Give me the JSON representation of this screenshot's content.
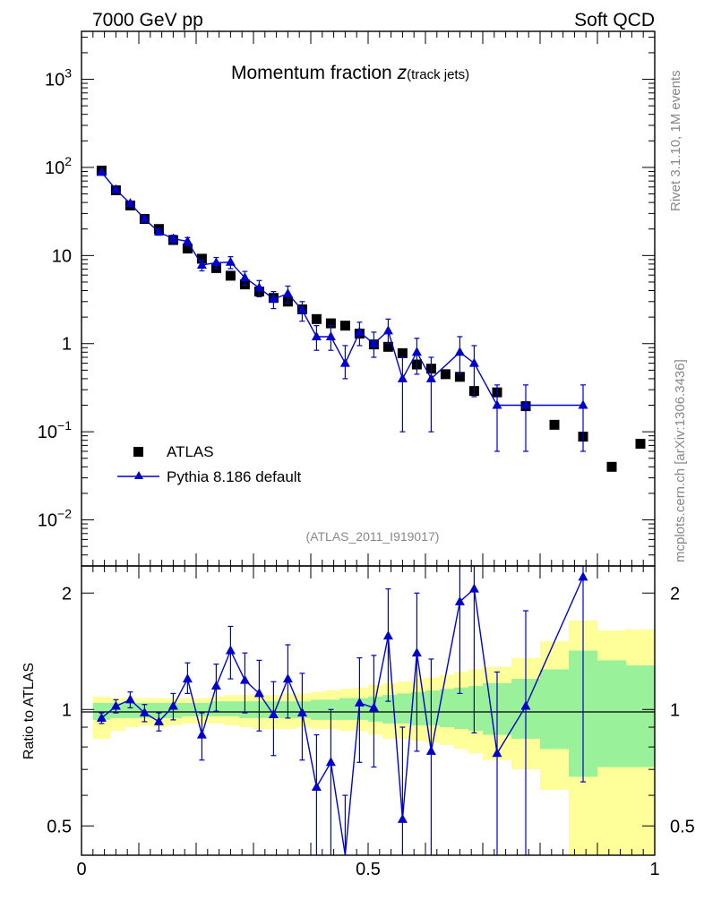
{
  "header": {
    "left": "7000 GeV pp",
    "right": "Soft QCD"
  },
  "side_text": {
    "top": "Rivet 3.1.10,  1M events",
    "bottom": "mcplots.cern.ch [arXiv:1306.3436]"
  },
  "chart_data": {
    "type": "scatter",
    "title": {
      "main": "Momentum fraction ",
      "z": "z",
      "sub": "(track jets)"
    },
    "analysis_id": "(ATLAS_2011_I919017)",
    "ratio_ylabel": "Ratio to ATLAS",
    "main_ylim": [
      0.003,
      3500
    ],
    "ratio_ylim": [
      0.42,
      2.35
    ],
    "xlim": [
      0,
      1
    ],
    "yscale": "log",
    "main_tick_labels": [
      {
        "v": 1000,
        "base": "10",
        "exp": "3"
      },
      {
        "v": 100,
        "base": "10",
        "exp": "2"
      },
      {
        "v": 10,
        "base": "10",
        "exp": ""
      },
      {
        "v": 1,
        "base": "1",
        "exp": ""
      },
      {
        "v": 0.1,
        "base": "10",
        "exp": "−1"
      },
      {
        "v": 0.01,
        "base": "10",
        "exp": "−2"
      }
    ],
    "ratio_tick_labels": [
      {
        "v": 2,
        "label": "2"
      },
      {
        "v": 1,
        "label": "1"
      },
      {
        "v": 0.5,
        "label": "0.5"
      }
    ],
    "x_tick_labels": [
      {
        "v": 0,
        "label": "0"
      },
      {
        "v": 0.5,
        "label": "0.5"
      },
      {
        "v": 1,
        "label": "1"
      }
    ],
    "legend": [
      {
        "name": "ATLAS",
        "marker": "square",
        "color": "#000000"
      },
      {
        "name": "Pythia 8.186 default",
        "marker": "triangle",
        "color": "#0000cc"
      }
    ],
    "atlas": [
      [
        0.035,
        92
      ],
      [
        0.06,
        55
      ],
      [
        0.085,
        37
      ],
      [
        0.11,
        26
      ],
      [
        0.135,
        20
      ],
      [
        0.16,
        15
      ],
      [
        0.185,
        12
      ],
      [
        0.21,
        9.2
      ],
      [
        0.235,
        7.2
      ],
      [
        0.26,
        5.9
      ],
      [
        0.285,
        4.7
      ],
      [
        0.31,
        3.9
      ],
      [
        0.335,
        3.3
      ],
      [
        0.36,
        3.0
      ],
      [
        0.385,
        2.45
      ],
      [
        0.41,
        1.9
      ],
      [
        0.435,
        1.7
      ],
      [
        0.46,
        1.6
      ],
      [
        0.485,
        1.3
      ],
      [
        0.51,
        0.98
      ],
      [
        0.535,
        0.92
      ],
      [
        0.56,
        0.78
      ],
      [
        0.585,
        0.58
      ],
      [
        0.61,
        0.52
      ],
      [
        0.635,
        0.45
      ],
      [
        0.66,
        0.42
      ],
      [
        0.685,
        0.29
      ],
      [
        0.725,
        0.28
      ],
      [
        0.775,
        0.195
      ],
      [
        0.825,
        0.12
      ],
      [
        0.875,
        0.088
      ],
      [
        0.925,
        0.04
      ],
      [
        0.975,
        0.073
      ]
    ],
    "pythia": [
      {
        "x": 0.035,
        "y": 88,
        "lo": 86,
        "hi": 90
      },
      {
        "x": 0.06,
        "y": 56,
        "lo": 54,
        "hi": 58
      },
      {
        "x": 0.085,
        "y": 39,
        "lo": 37,
        "hi": 41
      },
      {
        "x": 0.11,
        "y": 26,
        "lo": 24.5,
        "hi": 27.5
      },
      {
        "x": 0.135,
        "y": 18.5,
        "lo": 17,
        "hi": 20
      },
      {
        "x": 0.16,
        "y": 15.5,
        "lo": 14,
        "hi": 17
      },
      {
        "x": 0.185,
        "y": 14.5,
        "lo": 13,
        "hi": 16
      },
      {
        "x": 0.21,
        "y": 7.8,
        "lo": 6.7,
        "hi": 8.9
      },
      {
        "x": 0.235,
        "y": 8.3,
        "lo": 7.1,
        "hi": 9.5
      },
      {
        "x": 0.26,
        "y": 8.4,
        "lo": 7.1,
        "hi": 9.7
      },
      {
        "x": 0.285,
        "y": 5.6,
        "lo": 4.6,
        "hi": 6.6
      },
      {
        "x": 0.31,
        "y": 4.3,
        "lo": 3.4,
        "hi": 5.2
      },
      {
        "x": 0.335,
        "y": 3.2,
        "lo": 2.5,
        "hi": 3.9
      },
      {
        "x": 0.36,
        "y": 3.7,
        "lo": 2.9,
        "hi": 4.5
      },
      {
        "x": 0.385,
        "y": 2.4,
        "lo": 1.8,
        "hi": 3.0
      },
      {
        "x": 0.41,
        "y": 1.2,
        "lo": 0.84,
        "hi": 1.6
      },
      {
        "x": 0.435,
        "y": 1.2,
        "lo": 0.84,
        "hi": 1.6
      },
      {
        "x": 0.46,
        "y": 0.6,
        "lo": 0.4,
        "hi": 0.95
      },
      {
        "x": 0.485,
        "y": 1.35,
        "lo": 0.95,
        "hi": 1.75
      },
      {
        "x": 0.51,
        "y": 1.0,
        "lo": 0.7,
        "hi": 1.35
      },
      {
        "x": 0.535,
        "y": 1.4,
        "lo": 1.0,
        "hi": 1.9
      },
      {
        "x": 0.56,
        "y": 0.4,
        "lo": 0.1,
        "hi": 0.7
      },
      {
        "x": 0.585,
        "y": 0.8,
        "lo": 0.45,
        "hi": 1.15
      },
      {
        "x": 0.61,
        "y": 0.4,
        "lo": 0.1,
        "hi": 0.7
      },
      {
        "x": 0.66,
        "y": 0.8,
        "lo": 0.45,
        "hi": 1.2
      },
      {
        "x": 0.685,
        "y": 0.6,
        "lo": 0.25,
        "hi": 0.95
      },
      {
        "x": 0.725,
        "y": 0.2,
        "lo": 0.06,
        "hi": 0.34
      },
      {
        "x": 0.775,
        "y": 0.2,
        "lo": 0.06,
        "hi": 0.34
      },
      {
        "x": 0.875,
        "y": 0.2,
        "lo": 0.06,
        "hi": 0.34
      }
    ],
    "ratio": [
      {
        "x": 0.035,
        "y": 0.95,
        "lo": 0.92,
        "hi": 0.98
      },
      {
        "x": 0.06,
        "y": 1.02,
        "lo": 0.98,
        "hi": 1.06
      },
      {
        "x": 0.085,
        "y": 1.06,
        "lo": 1.01,
        "hi": 1.11
      },
      {
        "x": 0.11,
        "y": 0.98,
        "lo": 0.93,
        "hi": 1.03
      },
      {
        "x": 0.135,
        "y": 0.93,
        "lo": 0.88,
        "hi": 0.98
      },
      {
        "x": 0.16,
        "y": 1.02,
        "lo": 0.94,
        "hi": 1.1
      },
      {
        "x": 0.185,
        "y": 1.2,
        "lo": 1.1,
        "hi": 1.32
      },
      {
        "x": 0.21,
        "y": 0.86,
        "lo": 0.74,
        "hi": 0.98
      },
      {
        "x": 0.235,
        "y": 1.15,
        "lo": 0.99,
        "hi": 1.31
      },
      {
        "x": 0.26,
        "y": 1.42,
        "lo": 1.2,
        "hi": 1.64
      },
      {
        "x": 0.285,
        "y": 1.19,
        "lo": 0.98,
        "hi": 1.4
      },
      {
        "x": 0.31,
        "y": 1.1,
        "lo": 0.88,
        "hi": 1.34
      },
      {
        "x": 0.335,
        "y": 0.97,
        "lo": 0.76,
        "hi": 1.18
      },
      {
        "x": 0.36,
        "y": 1.2,
        "lo": 0.95,
        "hi": 1.47
      },
      {
        "x": 0.385,
        "y": 0.98,
        "lo": 0.74,
        "hi": 1.24
      },
      {
        "x": 0.41,
        "y": 0.63,
        "lo": 0.38,
        "hi": 0.86
      },
      {
        "x": 0.435,
        "y": 0.73,
        "lo": 0.4,
        "hi": 1.0
      },
      {
        "x": 0.46,
        "y": 0.37,
        "lo": 0.2,
        "hi": 0.6
      },
      {
        "x": 0.485,
        "y": 1.04,
        "lo": 0.73,
        "hi": 1.36
      },
      {
        "x": 0.51,
        "y": 1.01,
        "lo": 0.71,
        "hi": 1.38
      },
      {
        "x": 0.535,
        "y": 1.55,
        "lo": 1.05,
        "hi": 2.05
      },
      {
        "x": 0.56,
        "y": 0.52,
        "lo": 0.2,
        "hi": 0.9
      },
      {
        "x": 0.585,
        "y": 1.4,
        "lo": 0.78,
        "hi": 2.0
      },
      {
        "x": 0.61,
        "y": 0.78,
        "lo": 0.2,
        "hi": 1.35
      },
      {
        "x": 0.66,
        "y": 1.9,
        "lo": 1.1,
        "hi": 2.8
      },
      {
        "x": 0.685,
        "y": 2.05,
        "lo": 0.87,
        "hi": 3.3
      },
      {
        "x": 0.725,
        "y": 0.77,
        "lo": 0.2,
        "hi": 1.25
      },
      {
        "x": 0.775,
        "y": 1.02,
        "lo": 0.3,
        "hi": 1.8
      },
      {
        "x": 0.875,
        "y": 2.2,
        "lo": 0.65,
        "hi": 3.8
      }
    ],
    "ratio_band": [
      {
        "x0": 0.02,
        "x1": 0.05,
        "y_lo": 0.84,
        "y_hi": 1.08,
        "g_lo": 0.94,
        "g_hi": 1.04
      },
      {
        "x0": 0.05,
        "x1": 0.075,
        "y_lo": 0.88,
        "y_hi": 1.07,
        "g_lo": 0.95,
        "g_hi": 1.04
      },
      {
        "x0": 0.075,
        "x1": 0.1,
        "y_lo": 0.9,
        "y_hi": 1.07,
        "g_lo": 0.95,
        "g_hi": 1.04
      },
      {
        "x0": 0.1,
        "x1": 0.125,
        "y_lo": 0.91,
        "y_hi": 1.07,
        "g_lo": 0.95,
        "g_hi": 1.04
      },
      {
        "x0": 0.125,
        "x1": 0.15,
        "y_lo": 0.9,
        "y_hi": 1.07,
        "g_lo": 0.95,
        "g_hi": 1.04
      },
      {
        "x0": 0.15,
        "x1": 0.175,
        "y_lo": 0.91,
        "y_hi": 1.07,
        "g_lo": 0.95,
        "g_hi": 1.04
      },
      {
        "x0": 0.175,
        "x1": 0.2,
        "y_lo": 0.92,
        "y_hi": 1.07,
        "g_lo": 0.96,
        "g_hi": 1.04
      },
      {
        "x0": 0.2,
        "x1": 0.225,
        "y_lo": 0.92,
        "y_hi": 1.07,
        "g_lo": 0.96,
        "g_hi": 1.04
      },
      {
        "x0": 0.225,
        "x1": 0.25,
        "y_lo": 0.92,
        "y_hi": 1.08,
        "g_lo": 0.96,
        "g_hi": 1.05
      },
      {
        "x0": 0.25,
        "x1": 0.275,
        "y_lo": 0.91,
        "y_hi": 1.09,
        "g_lo": 0.96,
        "g_hi": 1.05
      },
      {
        "x0": 0.275,
        "x1": 0.3,
        "y_lo": 0.9,
        "y_hi": 1.09,
        "g_lo": 0.95,
        "g_hi": 1.05
      },
      {
        "x0": 0.3,
        "x1": 0.325,
        "y_lo": 0.89,
        "y_hi": 1.09,
        "g_lo": 0.95,
        "g_hi": 1.05
      },
      {
        "x0": 0.325,
        "x1": 0.35,
        "y_lo": 0.89,
        "y_hi": 1.09,
        "g_lo": 0.95,
        "g_hi": 1.05
      },
      {
        "x0": 0.35,
        "x1": 0.375,
        "y_lo": 0.89,
        "y_hi": 1.1,
        "g_lo": 0.95,
        "g_hi": 1.05
      },
      {
        "x0": 0.375,
        "x1": 0.4,
        "y_lo": 0.9,
        "y_hi": 1.1,
        "g_lo": 0.95,
        "g_hi": 1.05
      },
      {
        "x0": 0.4,
        "x1": 0.425,
        "y_lo": 0.89,
        "y_hi": 1.11,
        "g_lo": 0.94,
        "g_hi": 1.06
      },
      {
        "x0": 0.425,
        "x1": 0.45,
        "y_lo": 0.89,
        "y_hi": 1.12,
        "g_lo": 0.94,
        "g_hi": 1.06
      },
      {
        "x0": 0.45,
        "x1": 0.475,
        "y_lo": 0.88,
        "y_hi": 1.13,
        "g_lo": 0.94,
        "g_hi": 1.07
      },
      {
        "x0": 0.475,
        "x1": 0.5,
        "y_lo": 0.88,
        "y_hi": 1.14,
        "g_lo": 0.94,
        "g_hi": 1.07
      },
      {
        "x0": 0.5,
        "x1": 0.525,
        "y_lo": 0.86,
        "y_hi": 1.16,
        "g_lo": 0.93,
        "g_hi": 1.08
      },
      {
        "x0": 0.525,
        "x1": 0.55,
        "y_lo": 0.84,
        "y_hi": 1.17,
        "g_lo": 0.92,
        "g_hi": 1.09
      },
      {
        "x0": 0.55,
        "x1": 0.575,
        "y_lo": 0.84,
        "y_hi": 1.18,
        "g_lo": 0.92,
        "g_hi": 1.1
      },
      {
        "x0": 0.575,
        "x1": 0.6,
        "y_lo": 0.83,
        "y_hi": 1.2,
        "g_lo": 0.91,
        "g_hi": 1.11
      },
      {
        "x0": 0.6,
        "x1": 0.625,
        "y_lo": 0.82,
        "y_hi": 1.21,
        "g_lo": 0.91,
        "g_hi": 1.12
      },
      {
        "x0": 0.625,
        "x1": 0.65,
        "y_lo": 0.81,
        "y_hi": 1.23,
        "g_lo": 0.9,
        "g_hi": 1.13
      },
      {
        "x0": 0.65,
        "x1": 0.675,
        "y_lo": 0.79,
        "y_hi": 1.25,
        "g_lo": 0.89,
        "g_hi": 1.14
      },
      {
        "x0": 0.675,
        "x1": 0.7,
        "y_lo": 0.77,
        "y_hi": 1.27,
        "g_lo": 0.88,
        "g_hi": 1.15
      },
      {
        "x0": 0.7,
        "x1": 0.75,
        "y_lo": 0.74,
        "y_hi": 1.29,
        "g_lo": 0.86,
        "g_hi": 1.17
      },
      {
        "x0": 0.75,
        "x1": 0.8,
        "y_lo": 0.7,
        "y_hi": 1.36,
        "g_lo": 0.84,
        "g_hi": 1.2
      },
      {
        "x0": 0.8,
        "x1": 0.85,
        "y_lo": 0.62,
        "y_hi": 1.5,
        "g_lo": 0.79,
        "g_hi": 1.27
      },
      {
        "x0": 0.85,
        "x1": 0.9,
        "y_lo": 0.3,
        "y_hi": 1.7,
        "g_lo": 0.67,
        "g_hi": 1.42
      },
      {
        "x0": 0.9,
        "x1": 0.95,
        "y_lo": 0.3,
        "y_hi": 1.6,
        "g_lo": 0.71,
        "g_hi": 1.34
      },
      {
        "x0": 0.95,
        "x1": 1.0,
        "y_lo": 0.3,
        "y_hi": 1.61,
        "g_lo": 0.71,
        "g_hi": 1.3
      }
    ]
  }
}
